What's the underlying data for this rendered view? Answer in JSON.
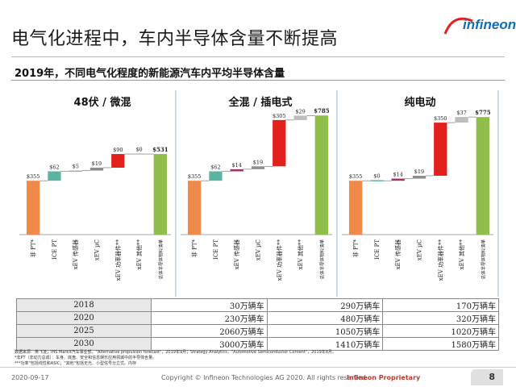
{
  "header": {
    "title": "电气化进程中，车内半导体含量不断提高",
    "logo": "infineon"
  },
  "subtitle": "2019年，不同电气化程度的新能源汽车内平均半导体含量",
  "chart_data": [
    {
      "type": "bar",
      "title": "48伏 / 微混",
      "categories": [
        "非 PT*",
        "ICE PT",
        "xEV 传感器",
        "xEV µC",
        "xEV 功率器件**",
        "xEV 其他**",
        "总体半导体物料清单"
      ],
      "values": [
        355,
        62,
        5,
        19,
        90,
        0,
        531
      ],
      "labels": [
        "$355",
        "$62",
        "$5",
        "$19",
        "$90",
        "$0",
        "$531"
      ],
      "colors": [
        "#f08a4b",
        "#5bb5a2",
        "#a6a6a6",
        "#8e8e8e",
        "#e4201c",
        "#bdbdbd",
        "#8fbf4a"
      ],
      "ylim": [
        0,
        850
      ]
    },
    {
      "type": "bar",
      "title": "全混 / 插电式",
      "categories": [
        "非 PT*",
        "ICE PT",
        "xEV 传感器",
        "xEV µC",
        "xEV 功率器件**",
        "xEV 其他**",
        "总体半导体物料清单"
      ],
      "values": [
        355,
        62,
        14,
        19,
        305,
        29,
        785
      ],
      "labels": [
        "$355",
        "$62",
        "$14",
        "$19",
        "$305",
        "$29",
        "$785"
      ],
      "colors": [
        "#f08a4b",
        "#5bb5a2",
        "#a0306e",
        "#8e8e8e",
        "#e4201c",
        "#bdbdbd",
        "#8fbf4a"
      ],
      "ylim": [
        0,
        850
      ]
    },
    {
      "type": "bar",
      "title": "纯电动",
      "categories": [
        "非 PT*",
        "ICE PT",
        "xEV 传感器",
        "xEV µC",
        "xEV 功率器件**",
        "xEV 其他**",
        "总体半导体物料清单"
      ],
      "values": [
        355,
        0,
        14,
        19,
        350,
        37,
        775
      ],
      "labels": [
        "$355",
        "$0",
        "$14",
        "$19",
        "$350",
        "$37",
        "$775"
      ],
      "colors": [
        "#f08a4b",
        "#5bb5a2",
        "#a0306e",
        "#8e8e8e",
        "#e4201c",
        "#bdbdbd",
        "#8fbf4a"
      ],
      "ylim": [
        0,
        850
      ]
    }
  ],
  "table": {
    "rows": [
      {
        "year": "2018",
        "mild": "30万辆车",
        "hybrid": "290万辆车",
        "bev": "170万辆车"
      },
      {
        "year": "2020",
        "mild": "230万辆车",
        "hybrid": "480万辆车",
        "bev": "320万辆车"
      },
      {
        "year": "2025",
        "mild": "2060万辆车",
        "hybrid": "1050万辆车",
        "bev": "1020万辆车"
      },
      {
        "year": "2030",
        "mild": "3000万辆车",
        "hybrid": "1410万辆车",
        "bev": "1580万辆车"
      }
    ]
  },
  "notes": [
    "数据来源：英飞凌；IHS Markit汽车事业部，\"Alternative propulsion forecast\"，2019年9月；Strategy Analytics，\"Automotive Semiconductor Content\"，2019年8月。",
    "*非PT（非动力总成）：车身、底盘、安全和信息娱乐应用领域中的半导体含量。",
    "***功率\"包括线性和ASIC；\"其他\"包括无光、小型信号分立式。内存"
  ],
  "footer": {
    "date": "2020-09-17",
    "copyright": "Copyright © Infineon Technologies AG 2020. All rights reserved.",
    "proprietary": "Infineon Proprietary",
    "page": "8"
  }
}
